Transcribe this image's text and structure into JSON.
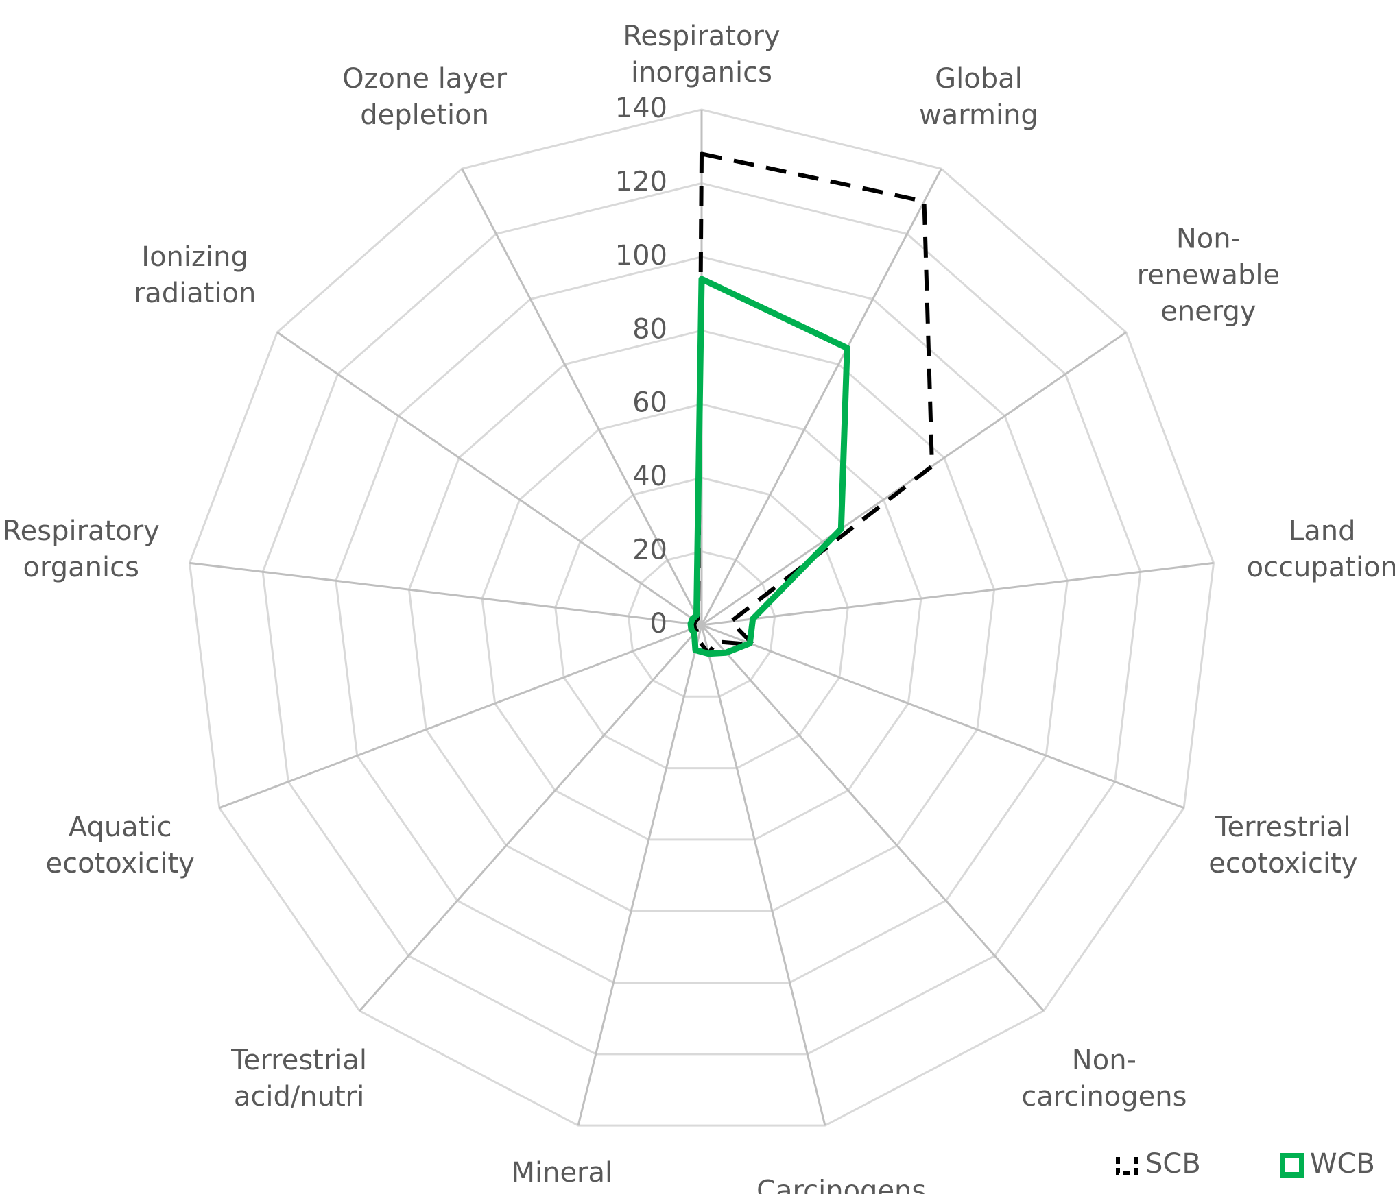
{
  "chart_data": {
    "type": "radar",
    "categories": [
      "Respiratory inorganics",
      "Global warming",
      "Non-renewable energy",
      "Land occupation",
      "Terrestrial ecotoxicity",
      "Non-carcinogens",
      "Carcinogens",
      "Mineral extraction",
      "Terrestrial acid/nutri",
      "Aquatic ecotoxicity",
      "Respiratory organics",
      "Ionizing radiation",
      "Ozone layer depletion"
    ],
    "series": [
      {
        "name": "SCB",
        "color": "#000000",
        "line_style": "dashed",
        "values": [
          128,
          130,
          76,
          8,
          15,
          6,
          8,
          4,
          2,
          2,
          2,
          2,
          2
        ]
      },
      {
        "name": "WCB",
        "color": "#00b050",
        "line_style": "solid",
        "values": [
          94,
          85,
          46,
          14,
          14,
          10,
          8,
          7,
          3,
          3,
          3,
          3,
          3
        ]
      }
    ],
    "ylim": [
      0,
      140
    ],
    "yticks": [
      0,
      20,
      40,
      60,
      80,
      100,
      120,
      140
    ],
    "grid": true,
    "legend": "bottom-right"
  }
}
